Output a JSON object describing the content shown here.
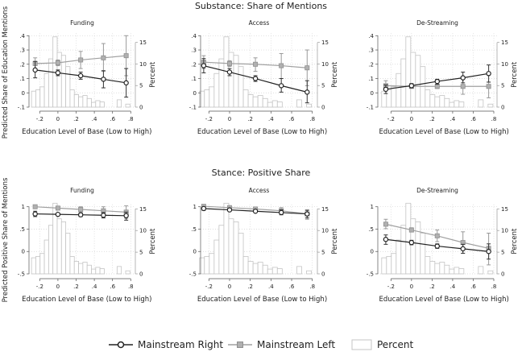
{
  "chart_data": {
    "type": "line",
    "rows": [
      {
        "title": "Substance: Share of Mentions",
        "ylabel": "Predicted Share of Education Mentions",
        "yticks": [
          ".4",
          ".3",
          ".2",
          ".1",
          "0",
          "-.1"
        ],
        "ytick_values": [
          0.4,
          0.3,
          0.2,
          0.1,
          0,
          -0.1
        ],
        "ylim": [
          -0.1,
          0.4
        ]
      },
      {
        "title": "Stance: Positive Share",
        "ylabel": "Predicted Positive Share of Mentions",
        "yticks": [
          "1",
          ".5",
          "0",
          "-.5"
        ],
        "ytick_values": [
          1,
          0.5,
          0,
          -0.5
        ],
        "ylim": [
          -0.5,
          1
        ]
      }
    ],
    "xlabel": "Education Level of Base (Low to High)",
    "xticks": [
      "-.2",
      "0",
      ".2",
      ".4",
      ".6",
      ".8"
    ],
    "xtick_values": [
      -0.2,
      0,
      0.2,
      0.4,
      0.6,
      0.8
    ],
    "y2label": "Percent",
    "y2ticks": [
      "0",
      "5",
      "10",
      "15"
    ],
    "y2tick_values": [
      0,
      5,
      10,
      15
    ],
    "grid": true,
    "legend_position": "bottom",
    "legend": [
      "Mainstream Right",
      "Mainstream Left",
      "Percent"
    ],
    "colors": {
      "right": "#222222",
      "left": "#a0a0a0",
      "hist": "#c4c4c4"
    },
    "x": [
      -0.25,
      0,
      0.25,
      0.5,
      0.75
    ],
    "histogram": {
      "bin_start": -0.29,
      "bin_width": 0.047,
      "percent": [
        3.7,
        4.0,
        4.7,
        7.8,
        11.2,
        16.3,
        12.7,
        12.0,
        9.4,
        4.0,
        2.9,
        2.4,
        2.7,
        2.0,
        1.1,
        1.5,
        1.2,
        0,
        0,
        0,
        1.7,
        0,
        0.7
      ]
    },
    "panels": [
      {
        "row": 0,
        "col": 0,
        "title": "Funding",
        "series": [
          {
            "name": "Mainstream Right",
            "values": [
              0.16,
              0.14,
              0.12,
              0.095,
              0.07
            ],
            "ci_low": [
              0.105,
              0.12,
              0.095,
              0.035,
              -0.03
            ],
            "ci_high": [
              0.22,
              0.16,
              0.145,
              0.155,
              0.17
            ]
          },
          {
            "name": "Mainstream Left",
            "values": [
              0.205,
              0.21,
              0.23,
              0.245,
              0.26
            ],
            "ci_low": [
              0.17,
              0.19,
              0.17,
              0.15,
              0.12
            ],
            "ci_high": [
              0.245,
              0.23,
              0.29,
              0.345,
              0.4
            ]
          }
        ]
      },
      {
        "row": 0,
        "col": 1,
        "title": "Access",
        "series": [
          {
            "name": "Mainstream Right",
            "values": [
              0.19,
              0.145,
              0.1,
              0.05,
              0.005
            ],
            "ci_low": [
              0.14,
              0.12,
              0.08,
              0.005,
              -0.07
            ],
            "ci_high": [
              0.24,
              0.17,
              0.12,
              0.1,
              0.085
            ]
          },
          {
            "name": "Mainstream Left",
            "values": [
              0.215,
              0.205,
              0.2,
              0.19,
              0.175
            ],
            "ci_low": [
              0.17,
              0.185,
              0.15,
              0.1,
              0.05
            ],
            "ci_high": [
              0.26,
              0.225,
              0.245,
              0.275,
              0.3
            ]
          }
        ]
      },
      {
        "row": 0,
        "col": 2,
        "title": "De-Streaming",
        "series": [
          {
            "name": "Mainstream Right",
            "values": [
              0.025,
              0.05,
              0.08,
              0.105,
              0.135
            ],
            "ci_low": [
              -0.005,
              0.035,
              0.06,
              0.07,
              0.075
            ],
            "ci_high": [
              0.055,
              0.065,
              0.095,
              0.145,
              0.195
            ]
          },
          {
            "name": "Mainstream Left",
            "values": [
              0.05,
              0.045,
              0.045,
              0.045,
              0.045
            ],
            "ci_low": [
              0.015,
              0.035,
              0.03,
              -0.01,
              -0.035
            ],
            "ci_high": [
              0.085,
              0.06,
              0.06,
              0.1,
              0.075
            ]
          }
        ]
      },
      {
        "row": 1,
        "col": 0,
        "title": "Funding",
        "series": [
          {
            "name": "Mainstream Right",
            "values": [
              0.84,
              0.83,
              0.82,
              0.81,
              0.8
            ],
            "ci_low": [
              0.78,
              0.8,
              0.78,
              0.75,
              0.7
            ],
            "ci_high": [
              0.9,
              0.86,
              0.86,
              0.87,
              0.88
            ]
          },
          {
            "name": "Mainstream Left",
            "values": [
              1.0,
              0.97,
              0.94,
              0.91,
              0.88
            ],
            "ci_low": [
              0.96,
              0.95,
              0.88,
              0.82,
              0.74
            ],
            "ci_high": [
              1.04,
              0.99,
              1.0,
              1.0,
              1.02
            ]
          }
        ]
      },
      {
        "row": 1,
        "col": 1,
        "title": "Access",
        "series": [
          {
            "name": "Mainstream Right",
            "values": [
              0.96,
              0.93,
              0.9,
              0.87,
              0.84
            ],
            "ci_low": [
              0.92,
              0.91,
              0.88,
              0.82,
              0.75
            ],
            "ci_high": [
              0.99,
              0.95,
              0.92,
              0.93,
              0.92
            ]
          },
          {
            "name": "Mainstream Left",
            "values": [
              1.01,
              0.98,
              0.95,
              0.91,
              0.84
            ],
            "ci_low": [
              0.98,
              0.96,
              0.91,
              0.84,
              0.72
            ],
            "ci_high": [
              1.04,
              1.0,
              0.99,
              0.98,
              0.93
            ]
          }
        ]
      },
      {
        "row": 1,
        "col": 2,
        "title": "De-Streaming",
        "series": [
          {
            "name": "Mainstream Right",
            "values": [
              0.27,
              0.2,
              0.12,
              0.06,
              0.0
            ],
            "ci_low": [
              0.16,
              0.15,
              0.07,
              -0.04,
              -0.17
            ],
            "ci_high": [
              0.37,
              0.25,
              0.17,
              0.16,
              0.17
            ]
          },
          {
            "name": "Mainstream Left",
            "values": [
              0.61,
              0.48,
              0.35,
              0.2,
              0.07
            ],
            "ci_low": [
              0.51,
              0.44,
              0.22,
              -0.04,
              -0.3
            ],
            "ci_high": [
              0.72,
              0.53,
              0.48,
              0.44,
              0.41
            ]
          }
        ]
      }
    ]
  }
}
